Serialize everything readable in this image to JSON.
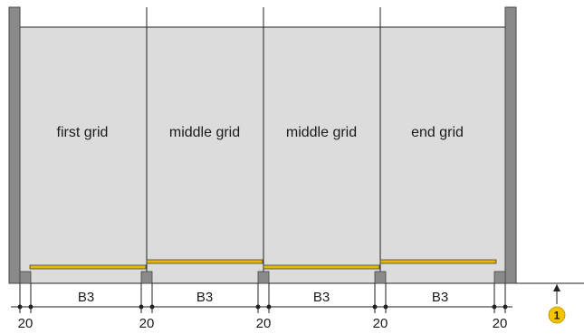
{
  "grids": [
    {
      "label": "first grid"
    },
    {
      "label": "middle grid"
    },
    {
      "label": "middle grid"
    },
    {
      "label": "end grid"
    }
  ],
  "dimensions": {
    "width_label": "B3",
    "edge_label": "20"
  },
  "marker": {
    "number": "1"
  },
  "colors": {
    "wall": "#8a8a8a",
    "panel": "#dcdcdc",
    "outline": "#222222",
    "strip": "#e6b800",
    "marker": "#f5c400"
  }
}
